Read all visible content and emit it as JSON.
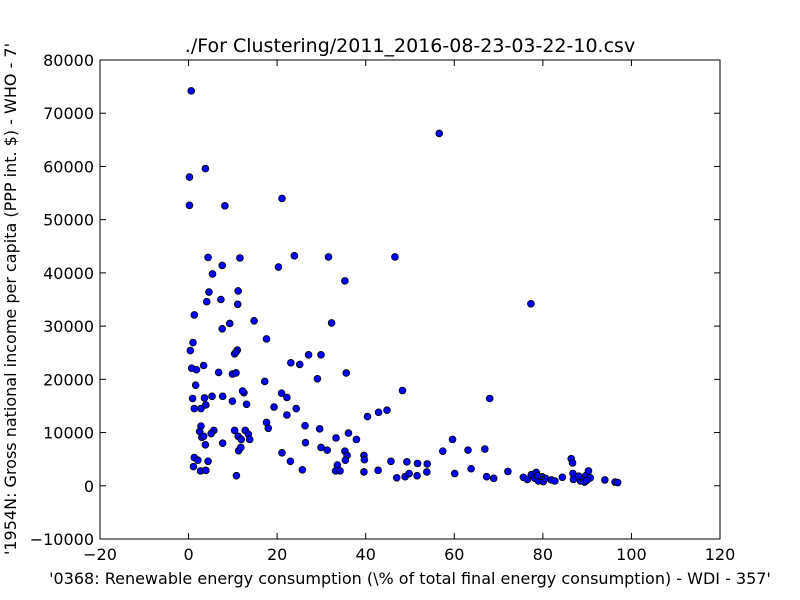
{
  "chart_data": {
    "type": "scatter",
    "title": "./For Clustering/2011_2016-08-23-03-22-10.csv",
    "xlabel": "'0368: Renewable energy consumption  (\\% of total final energy consumption) - WDI - 357'",
    "ylabel": "'1954N: Gross national income per capita (PPP int. $) - WHO - 7'",
    "xlim": [
      -20,
      120
    ],
    "ylim": [
      -10000,
      80000
    ],
    "xticks": [
      -20,
      0,
      20,
      40,
      60,
      80,
      100,
      120
    ],
    "yticks": [
      -10000,
      0,
      10000,
      20000,
      30000,
      40000,
      50000,
      60000,
      70000,
      80000
    ],
    "xtick_labels": [
      "−20",
      "0",
      "20",
      "40",
      "60",
      "80",
      "100",
      "120"
    ],
    "ytick_labels": [
      "−10000",
      "0",
      "10000",
      "20000",
      "30000",
      "40000",
      "50000",
      "60000",
      "70000",
      "80000"
    ],
    "grid": false,
    "marker_color": "#0000ff",
    "points": [
      [
        0.6,
        74200
      ],
      [
        0.2,
        58000
      ],
      [
        0.2,
        52700
      ],
      [
        3.8,
        59600
      ],
      [
        8.2,
        52600
      ],
      [
        21.1,
        54000
      ],
      [
        56.6,
        66200
      ],
      [
        4.4,
        42900
      ],
      [
        11.6,
        42800
      ],
      [
        23.9,
        43200
      ],
      [
        31.6,
        43000
      ],
      [
        46.6,
        43000
      ],
      [
        20.3,
        41100
      ],
      [
        7.6,
        41400
      ],
      [
        5.4,
        39800
      ],
      [
        35.3,
        38500
      ],
      [
        4.6,
        36400
      ],
      [
        11.2,
        36600
      ],
      [
        4.1,
        34600
      ],
      [
        7.3,
        35000
      ],
      [
        11.1,
        34100
      ],
      [
        77.3,
        34200
      ],
      [
        1.3,
        32100
      ],
      [
        14.8,
        31000
      ],
      [
        9.3,
        30500
      ],
      [
        7.6,
        29500
      ],
      [
        32.3,
        30600
      ],
      [
        1.0,
        26900
      ],
      [
        0.4,
        25400
      ],
      [
        10.4,
        24800
      ],
      [
        11.0,
        25500
      ],
      [
        10.7,
        25100
      ],
      [
        17.6,
        27600
      ],
      [
        27.1,
        24600
      ],
      [
        29.9,
        24600
      ],
      [
        0.7,
        22100
      ],
      [
        1.8,
        21800
      ],
      [
        3.4,
        22600
      ],
      [
        6.8,
        21300
      ],
      [
        9.9,
        21000
      ],
      [
        10.7,
        21200
      ],
      [
        23.1,
        23100
      ],
      [
        25.1,
        22800
      ],
      [
        35.6,
        21200
      ],
      [
        29.1,
        20100
      ],
      [
        1.6,
        18900
      ],
      [
        17.2,
        19600
      ],
      [
        12.5,
        17500
      ],
      [
        12.2,
        17800
      ],
      [
        21.0,
        17400
      ],
      [
        22.2,
        16600
      ],
      [
        48.3,
        17900
      ],
      [
        0.9,
        16400
      ],
      [
        3.6,
        16500
      ],
      [
        5.3,
        16800
      ],
      [
        7.7,
        16800
      ],
      [
        9.9,
        15900
      ],
      [
        13.1,
        15300
      ],
      [
        1.3,
        14500
      ],
      [
        2.8,
        14500
      ],
      [
        3.9,
        15200
      ],
      [
        24.3,
        14500
      ],
      [
        19.3,
        14800
      ],
      [
        22.2,
        13300
      ],
      [
        42.9,
        13800
      ],
      [
        44.8,
        14200
      ],
      [
        40.4,
        13000
      ],
      [
        68.0,
        16400
      ],
      [
        2.8,
        11200
      ],
      [
        5.7,
        10400
      ],
      [
        5.1,
        9800
      ],
      [
        3.0,
        9100
      ],
      [
        10.4,
        10400
      ],
      [
        12.8,
        10400
      ],
      [
        13.5,
        9700
      ],
      [
        17.6,
        11900
      ],
      [
        18.0,
        10800
      ],
      [
        26.3,
        11300
      ],
      [
        29.6,
        10700
      ],
      [
        36.1,
        9900
      ],
      [
        2.5,
        10200
      ],
      [
        3.4,
        9300
      ],
      [
        3.8,
        7700
      ],
      [
        7.7,
        8000
      ],
      [
        11.2,
        9300
      ],
      [
        11.9,
        8700
      ],
      [
        13.8,
        8700
      ],
      [
        26.4,
        8100
      ],
      [
        29.9,
        7200
      ],
      [
        33.3,
        9000
      ],
      [
        37.9,
        8700
      ],
      [
        59.6,
        8700
      ],
      [
        31.3,
        6700
      ],
      [
        35.3,
        6500
      ],
      [
        11.3,
        6600
      ],
      [
        11.8,
        7200
      ],
      [
        21.1,
        6200
      ],
      [
        35.8,
        5700
      ],
      [
        39.6,
        5700
      ],
      [
        57.4,
        6500
      ],
      [
        63.1,
        6700
      ],
      [
        66.9,
        6900
      ],
      [
        1.3,
        5300
      ],
      [
        2.1,
        4800
      ],
      [
        4.4,
        4600
      ],
      [
        23.0,
        4600
      ],
      [
        33.6,
        3900
      ],
      [
        35.4,
        4800
      ],
      [
        39.7,
        4900
      ],
      [
        45.7,
        4600
      ],
      [
        49.3,
        4500
      ],
      [
        51.7,
        4200
      ],
      [
        53.9,
        4100
      ],
      [
        86.4,
        5100
      ],
      [
        86.7,
        4300
      ],
      [
        1.1,
        3600
      ],
      [
        2.7,
        2800
      ],
      [
        3.9,
        2900
      ],
      [
        10.8,
        1900
      ],
      [
        25.7,
        3000
      ],
      [
        33.2,
        2800
      ],
      [
        34.2,
        2800
      ],
      [
        39.6,
        2600
      ],
      [
        42.8,
        2900
      ],
      [
        47.0,
        1500
      ],
      [
        48.9,
        1700
      ],
      [
        49.8,
        2300
      ],
      [
        51.6,
        1900
      ],
      [
        53.8,
        2600
      ],
      [
        60.1,
        2300
      ],
      [
        63.8,
        3200
      ],
      [
        67.3,
        1700
      ],
      [
        68.9,
        1400
      ],
      [
        72.1,
        2700
      ],
      [
        75.6,
        1600
      ],
      [
        76.5,
        1200
      ],
      [
        77.4,
        2100
      ],
      [
        78.5,
        2500
      ],
      [
        78.2,
        1400
      ],
      [
        79.0,
        900
      ],
      [
        79.8,
        1700
      ],
      [
        80.1,
        800
      ],
      [
        80.6,
        1400
      ],
      [
        81.9,
        1100
      ],
      [
        84.4,
        1600
      ],
      [
        86.8,
        2300
      ],
      [
        86.9,
        1200
      ],
      [
        88.5,
        900
      ],
      [
        89.0,
        1400
      ],
      [
        89.4,
        700
      ],
      [
        89.7,
        1900
      ],
      [
        90.3,
        2800
      ],
      [
        90.7,
        1500
      ],
      [
        89.9,
        1000
      ],
      [
        94.0,
        1100
      ],
      [
        96.3,
        700
      ],
      [
        96.9,
        600
      ],
      [
        88.1,
        1800
      ],
      [
        82.7,
        900
      ],
      [
        78.8,
        1900
      ]
    ]
  }
}
